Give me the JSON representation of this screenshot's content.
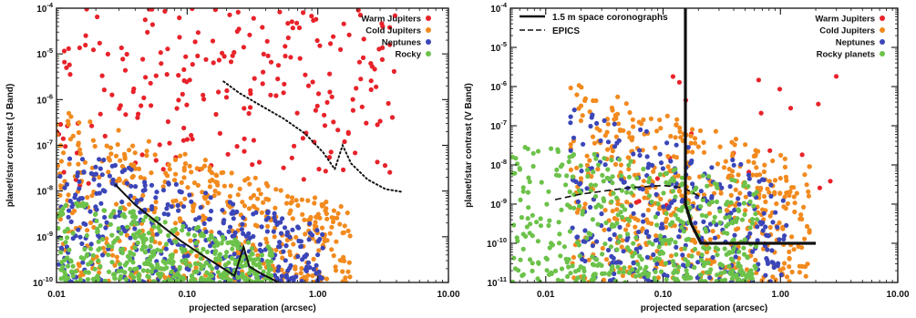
{
  "chart_data": [
    {
      "type": "scatter",
      "xlabel": "projected separation (arcsec)",
      "ylabel": "planet/star contrast (J Band)",
      "x_scale": "log",
      "y_scale": "log",
      "xlim": [
        0.01,
        10
      ],
      "ylim": [
        1e-10,
        0.0001
      ],
      "x_ticks": [
        {
          "value": 0.01,
          "label": "0.01"
        },
        {
          "value": 0.1,
          "label": "0.10"
        },
        {
          "value": 1,
          "label": "1.00"
        },
        {
          "value": 10,
          "label": "10.00"
        }
      ],
      "y_ticks": [
        {
          "value": 1e-10,
          "exp": "-10"
        },
        {
          "value": 1e-09,
          "exp": "-9"
        },
        {
          "value": 1e-08,
          "exp": "-8"
        },
        {
          "value": 1e-07,
          "exp": "-7"
        },
        {
          "value": 1e-06,
          "exp": "-6"
        },
        {
          "value": 1e-05,
          "exp": "-5"
        },
        {
          "value": 0.0001,
          "exp": "-4"
        }
      ],
      "legend_position": "top-right",
      "series": [
        {
          "name": "Warm Jupiters",
          "color": "#e8222a",
          "cloud": {
            "seed": 11,
            "count": 230,
            "xlogmin": -2.0,
            "xlogmax": 0.6,
            "ylogmin": -7.9,
            "ylogmax": -4.0,
            "bias": "upper"
          }
        },
        {
          "name": "Cold Jupiters",
          "color": "#f28a1e",
          "cloud": {
            "seed": 23,
            "count": 520,
            "xlogmin": -2.0,
            "xlogmax": 0.25,
            "ylogmin": -10.0,
            "ylogmax": -6.2,
            "bias": "diagonal"
          }
        },
        {
          "name": "Neptunes",
          "color": "#3b46b8",
          "cloud": {
            "seed": 37,
            "count": 380,
            "xlogmin": -2.0,
            "xlogmax": 0.05,
            "ylogmin": -10.0,
            "ylogmax": -7.0,
            "bias": "diagonal-low"
          }
        },
        {
          "name": "Rocky",
          "color": "#6cc24a",
          "cloud": {
            "seed": 51,
            "count": 420,
            "xlogmin": -2.0,
            "xlogmax": -0.35,
            "ylogmin": -10.0,
            "ylogmax": -8.0,
            "bias": "lower"
          }
        }
      ],
      "curves": [
        {
          "style": "dotted",
          "color": "#111111",
          "points": [
            [
              0.19,
              2.5e-06
            ],
            [
              0.25,
              1.4e-06
            ],
            [
              0.35,
              8e-07
            ],
            [
              0.55,
              3.8e-07
            ],
            [
              0.8,
              1.8e-07
            ],
            [
              1.1,
              7e-08
            ],
            [
              1.35,
              3e-08
            ],
            [
              1.55,
              1e-07
            ],
            [
              1.8,
              4e-08
            ],
            [
              2.4,
              1.8e-08
            ],
            [
              3.3,
              1.1e-08
            ],
            [
              4.5,
              9.5e-09
            ]
          ]
        },
        {
          "style": "solid",
          "color": "#111111",
          "points": [
            [
              0.028,
              1.4e-08
            ],
            [
              0.04,
              5e-09
            ],
            [
              0.06,
              2e-09
            ],
            [
              0.09,
              8e-10
            ],
            [
              0.13,
              4e-10
            ],
            [
              0.19,
              2e-10
            ],
            [
              0.23,
              1.4e-10
            ],
            [
              0.27,
              6e-10
            ],
            [
              0.3,
              2.2e-10
            ],
            [
              0.38,
              1.5e-10
            ],
            [
              0.5,
              1e-10
            ]
          ]
        }
      ]
    },
    {
      "type": "scatter",
      "xlabel": "projected separation (arcsec)",
      "ylabel": "planet/star contrast (V Band)",
      "x_scale": "log",
      "y_scale": "log",
      "xlim": [
        0.005,
        10
      ],
      "ylim": [
        1e-11,
        0.0001
      ],
      "x_ticks": [
        {
          "value": 0.01,
          "label": "0.01"
        },
        {
          "value": 0.1,
          "label": "0.10"
        },
        {
          "value": 1,
          "label": "1.00"
        },
        {
          "value": 10,
          "label": "10.00"
        }
      ],
      "y_ticks": [
        {
          "value": 1e-11,
          "exp": "-11"
        },
        {
          "value": 1e-10,
          "exp": "-10"
        },
        {
          "value": 1e-09,
          "exp": "-9"
        },
        {
          "value": 1e-08,
          "exp": "-8"
        },
        {
          "value": 1e-07,
          "exp": "-7"
        },
        {
          "value": 1e-06,
          "exp": "-6"
        },
        {
          "value": 1e-05,
          "exp": "-5"
        },
        {
          "value": 0.0001,
          "exp": "-4"
        }
      ],
      "legend_position": "top-right",
      "line_legend": [
        {
          "label": "1.5 m space coronographs",
          "style": "solid"
        },
        {
          "label": "EPICS",
          "style": "dashed"
        }
      ],
      "series": [
        {
          "name": "Warm Jupiters",
          "color": "#e8222a",
          "cloud": {
            "seed": 61,
            "count": 22,
            "xlogmin": -1.3,
            "xlogmax": 0.6,
            "ylogmin": -10.0,
            "ylogmax": -5.5,
            "bias": "none"
          }
        },
        {
          "name": "Cold Jupiters",
          "color": "#f28a1e",
          "cloud": {
            "seed": 73,
            "count": 520,
            "xlogmin": -1.8,
            "xlogmax": 0.25,
            "ylogmin": -11.0,
            "ylogmax": -5.8,
            "bias": "diagonal"
          }
        },
        {
          "name": "Neptunes",
          "color": "#3b46b8",
          "cloud": {
            "seed": 89,
            "count": 300,
            "xlogmin": -1.8,
            "xlogmax": 0.05,
            "ylogmin": -11.0,
            "ylogmax": -6.5,
            "bias": "diagonal-low"
          }
        },
        {
          "name": "Rocky planets",
          "color": "#6cc24a",
          "cloud": {
            "seed": 97,
            "count": 460,
            "xlogmin": -2.3,
            "xlogmax": -0.2,
            "ylogmin": -11.0,
            "ylogmax": -7.3,
            "bias": "lower"
          }
        }
      ],
      "curves": [
        {
          "style": "solid",
          "color": "#111111",
          "width": 3.2,
          "points": [
            [
              0.155,
              0.0001
            ],
            [
              0.155,
              1e-09
            ],
            [
              0.175,
              3e-10
            ],
            [
              0.21,
              1e-10
            ],
            [
              0.5,
              1e-10
            ],
            [
              2.0,
              1e-10
            ]
          ]
        },
        {
          "style": "dashed",
          "color": "#111111",
          "width": 1.6,
          "points": [
            [
              0.012,
              1.3e-09
            ],
            [
              0.02,
              1.8e-09
            ],
            [
              0.05,
              2.6e-09
            ],
            [
              0.1,
              3e-09
            ],
            [
              0.15,
              2.6e-09
            ],
            [
              0.22,
              1.4e-09
            ]
          ]
        }
      ]
    }
  ]
}
